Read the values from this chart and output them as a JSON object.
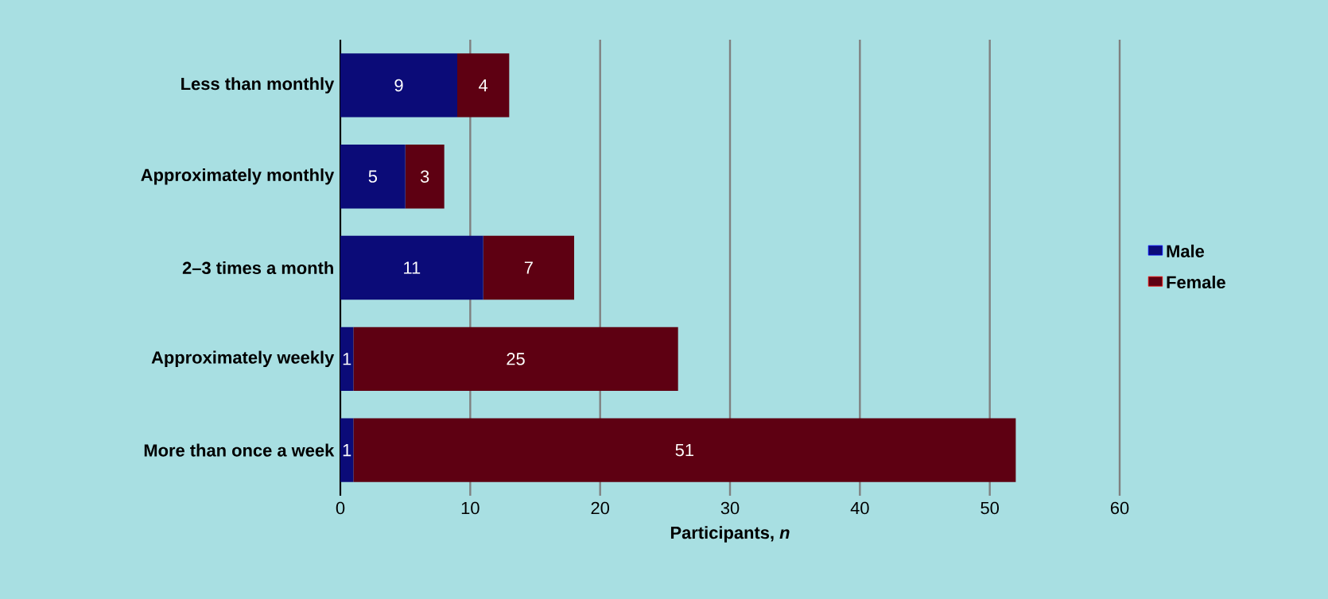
{
  "chart_data": {
    "type": "bar",
    "orientation": "horizontal",
    "stacked": true,
    "categories": [
      "Less than monthly",
      "Approximately monthly",
      "2–3 times a month",
      "Approximately weekly",
      "More than once a week"
    ],
    "series": [
      {
        "name": "Male",
        "color": "#0b0b78",
        "values": [
          9,
          5,
          11,
          1,
          1
        ]
      },
      {
        "name": "Female",
        "color": "#5e0012",
        "values": [
          4,
          3,
          7,
          25,
          51
        ]
      }
    ],
    "xlabel": "Participants, *n*",
    "xlim": [
      0,
      60
    ],
    "xticks": [
      0,
      10,
      20,
      30,
      40,
      50,
      60
    ],
    "grid": "x",
    "legend": "right",
    "data_labels": true
  }
}
